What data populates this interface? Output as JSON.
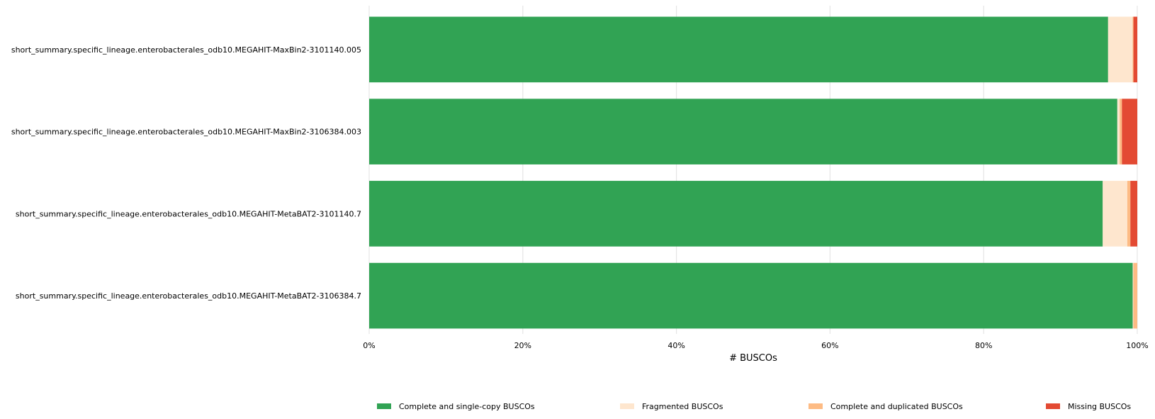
{
  "chart_data": {
    "type": "bar",
    "orientation": "horizontal",
    "stacked": true,
    "categories": [
      "short_summary.specific_lineage.enterobacterales_odb10.MEGAHIT-MaxBin2-3101140.005",
      "short_summary.specific_lineage.enterobacterales_odb10.MEGAHIT-MaxBin2-3106384.003",
      "short_summary.specific_lineage.enterobacterales_odb10.MEGAHIT-MetaBAT2-3101140.7",
      "short_summary.specific_lineage.enterobacterales_odb10.MEGAHIT-MetaBAT2-3106384.7"
    ],
    "series": [
      {
        "name": "Complete and single-copy BUSCOs",
        "color": "#31a354",
        "values": [
          96.2,
          97.4,
          95.5,
          99.4
        ]
      },
      {
        "name": "Fragmented BUSCOs",
        "color": "#fee6ce",
        "values": [
          3.2,
          0.3,
          3.2,
          0.1
        ]
      },
      {
        "name": "Complete and duplicated BUSCOs",
        "color": "#fdbb84",
        "values": [
          0.1,
          0.3,
          0.4,
          0.5
        ]
      },
      {
        "name": "Missing BUSCOs",
        "color": "#e34a33",
        "values": [
          0.5,
          2.0,
          0.9,
          0.0
        ]
      }
    ],
    "xlabel": "# BUSCOs",
    "ylabel": "",
    "xlim": [
      0,
      100
    ],
    "xticks": [
      "0%",
      "20%",
      "40%",
      "60%",
      "80%",
      "100%"
    ],
    "grid": "vertical",
    "legend_position": "bottom"
  }
}
